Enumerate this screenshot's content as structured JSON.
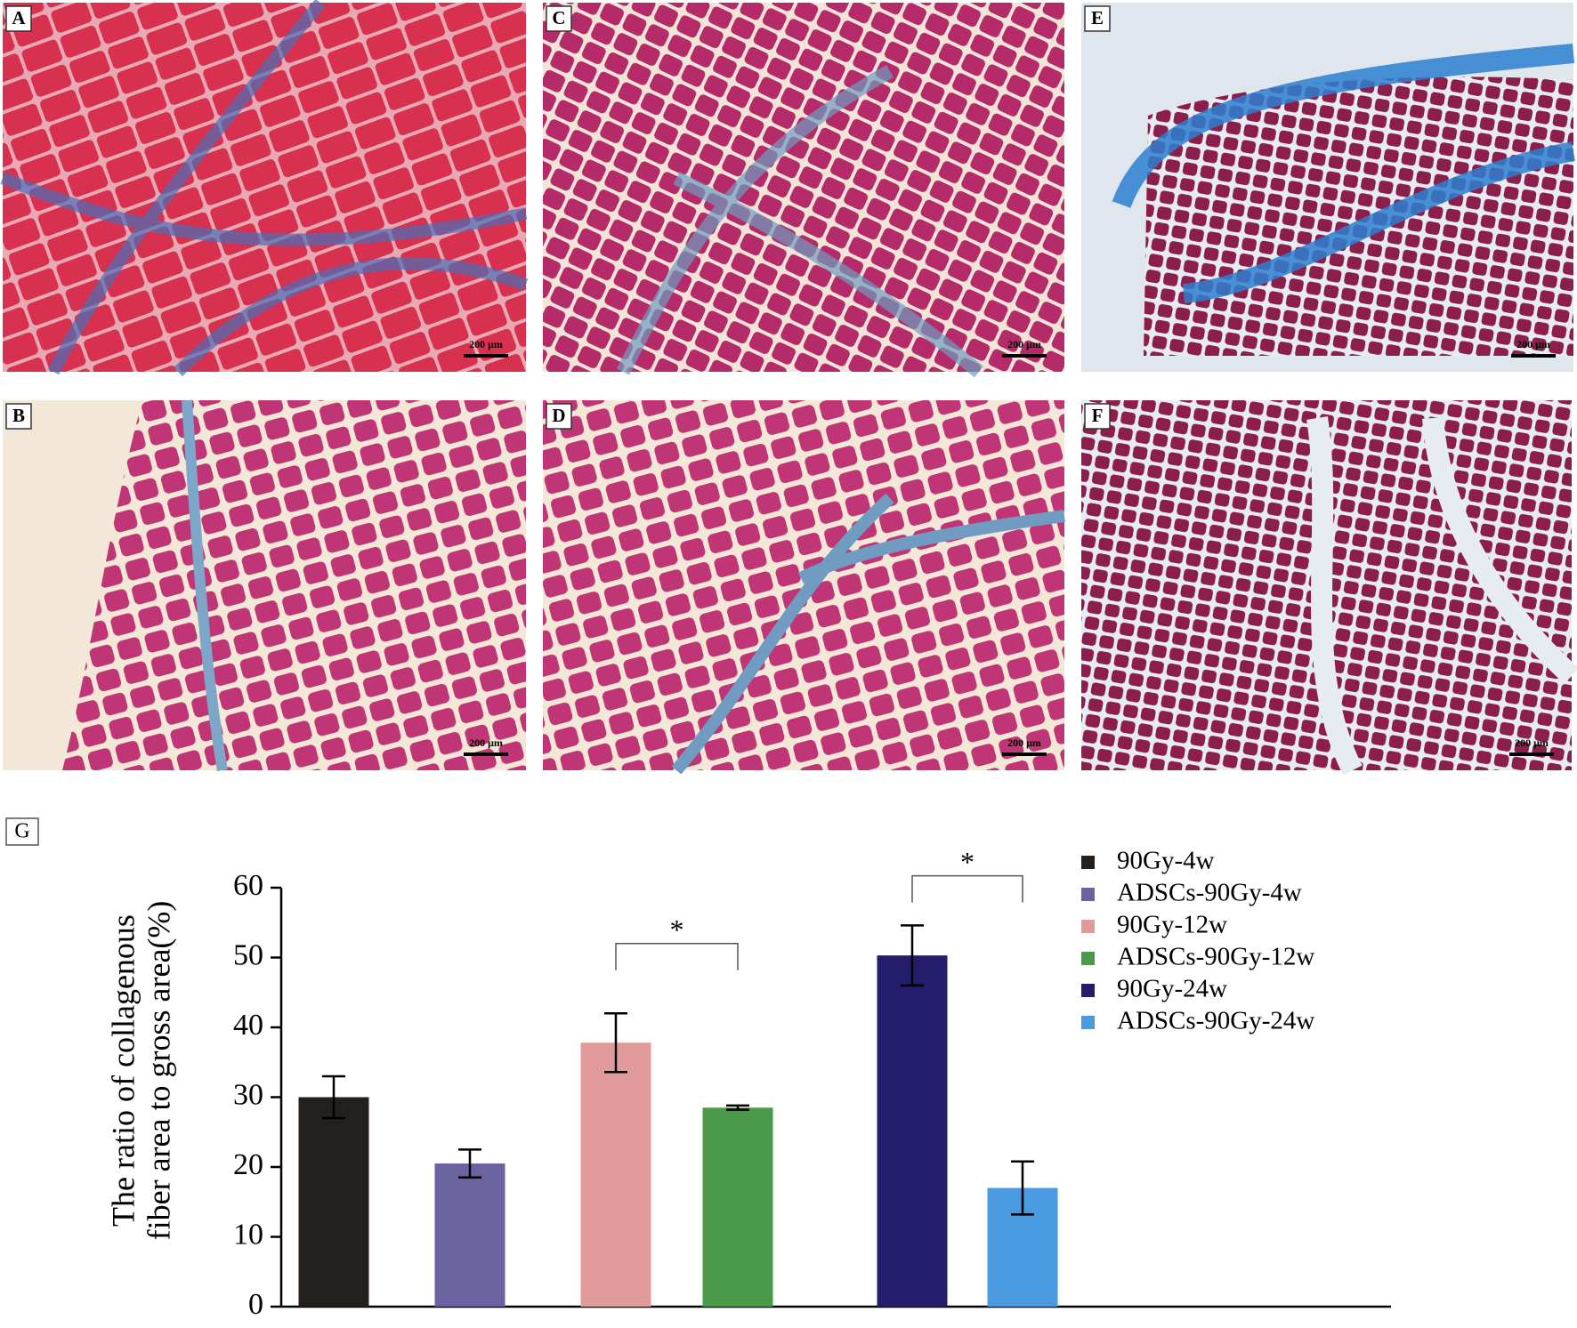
{
  "panels": [
    {
      "label": "A",
      "scale_bar": "200 μm"
    },
    {
      "label": "B",
      "scale_bar": "200 μm"
    },
    {
      "label": "C",
      "scale_bar": "200 μm"
    },
    {
      "label": "D",
      "scale_bar": "200 μm"
    },
    {
      "label": "E",
      "scale_bar": "200 μm"
    },
    {
      "label": "F",
      "scale_bar": "200 μm"
    }
  ],
  "chart_label": "G",
  "chart_data": {
    "type": "bar",
    "ylabel": [
      "The ratio of collagenous",
      "fiber area to gross area(%)"
    ],
    "ylim": [
      0,
      60
    ],
    "yticks": [
      0,
      10,
      20,
      30,
      40,
      50,
      60
    ],
    "series": [
      {
        "name": "90Gy-4w",
        "color": "#24201d",
        "values": [
          30
        ],
        "errors": [
          3
        ]
      },
      {
        "name": "ADSCs-90Gy-4w",
        "color": "#6a63a0",
        "values": [
          20.5
        ],
        "errors": [
          2
        ]
      },
      {
        "name": "90Gy-12w",
        "color": "#e09a9a",
        "values": [
          37.8
        ],
        "errors": [
          4.2
        ]
      },
      {
        "name": "ADSCs-90Gy-12w",
        "color": "#4a9a4a",
        "values": [
          28.5
        ],
        "errors": [
          0.3
        ]
      },
      {
        "name": "90Gy-24w",
        "color": "#231d6b",
        "values": [
          50.3
        ],
        "errors": [
          4.3
        ]
      },
      {
        "name": "ADSCs-90Gy-24w",
        "color": "#4a9ae0",
        "values": [
          17
        ],
        "errors": [
          3.8
        ]
      }
    ],
    "annotations": [
      {
        "text": "*",
        "from": 2,
        "to": 3,
        "y": 52
      },
      {
        "text": "*",
        "from": 4,
        "to": 5,
        "y": 61.7
      }
    ]
  }
}
